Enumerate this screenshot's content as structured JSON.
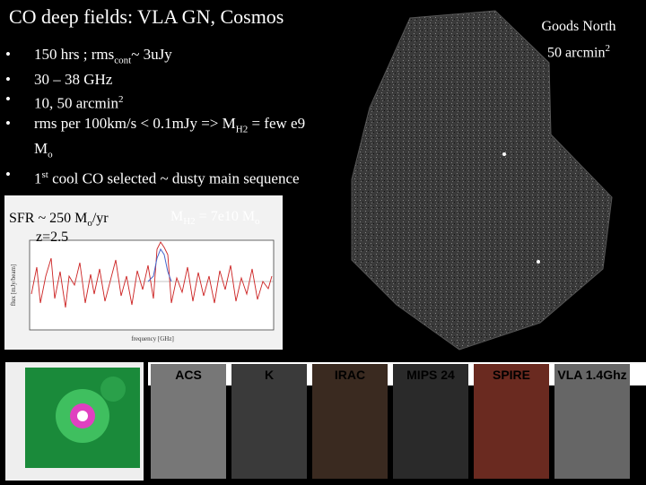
{
  "title": "CO deep fields: VLA GN, Cosmos",
  "bullets": {
    "b1_a": "150 hrs ; rms",
    "b1_sub": "cont",
    "b1_b": "~ 3uJy",
    "b2": "30 – 38 GHz",
    "b3_a": "10, 50 arcmin",
    "b3_sup": "2",
    "b4_a": "rms per 100km/s < 0.1mJy => M",
    "b4_sub": "H2",
    "b4_b": " = few e9 M",
    "b4_sub2": "o",
    "b5_a": "1",
    "b5_sup": "st",
    "b5_b": " cool CO selected ~ dusty main sequence"
  },
  "spectrum": {
    "sfr_a": "SFR ~ 250 M",
    "sfr_sub": "o",
    "sfr_b": "/yr",
    "z": "z=2.5",
    "mh2_a": "M",
    "mh2_sub": "H2",
    "mh2_b": " = 7e10 M",
    "mh2_sub2": "o",
    "xlabel": "frequency [GHz]",
    "ylabel": "flux [mJy/beam]"
  },
  "field": {
    "label_line1": "Goods North",
    "label_line2_a": "50 arcmin",
    "label_line2_sup": "2"
  },
  "stamps": [
    "ACS",
    "K",
    "IRAC",
    "MIPS 24",
    "SPIRE",
    "VLA 1.4Ghz"
  ],
  "colors": {
    "background": "#000000",
    "text": "#ffffff",
    "spectrum_line": "#cc2222",
    "spectrum_model": "#4466cc"
  }
}
